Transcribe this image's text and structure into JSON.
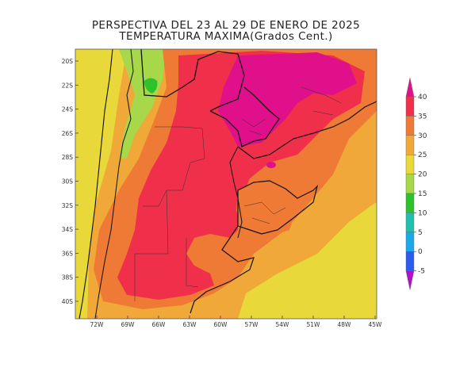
{
  "title": {
    "line1": "PERSPECTIVA DEL 23 AL 29 DE ENERO DE 2025",
    "line2": "TEMPERATURA MAXIMA(Grados Cent.)"
  },
  "map": {
    "lat_labels": [
      "20S",
      "22S",
      "24S",
      "26S",
      "28S",
      "30S",
      "32S",
      "34S",
      "36S",
      "38S",
      "40S"
    ],
    "lon_labels": [
      "72W",
      "69W",
      "66W",
      "63W",
      "60W",
      "57W",
      "54W",
      "51W",
      "48W",
      "45W"
    ]
  },
  "colorbar": {
    "labels": [
      "40",
      "35",
      "30",
      "25",
      "20",
      "15",
      "10",
      "5",
      "0",
      "-5"
    ],
    "colors": {
      "above_40": "#e0108a",
      "c35_40": "#f0304a",
      "c30_35": "#ee7a36",
      "c25_30": "#f0a838",
      "c20_25": "#e8d83a",
      "c15_20": "#a6d84a",
      "c10_15": "#2cc22c",
      "c5_10": "#20c0b0",
      "c0_5": "#1aa8e8",
      "cm5_0": "#2a5cf0",
      "below_m5": "#b010c8"
    }
  }
}
